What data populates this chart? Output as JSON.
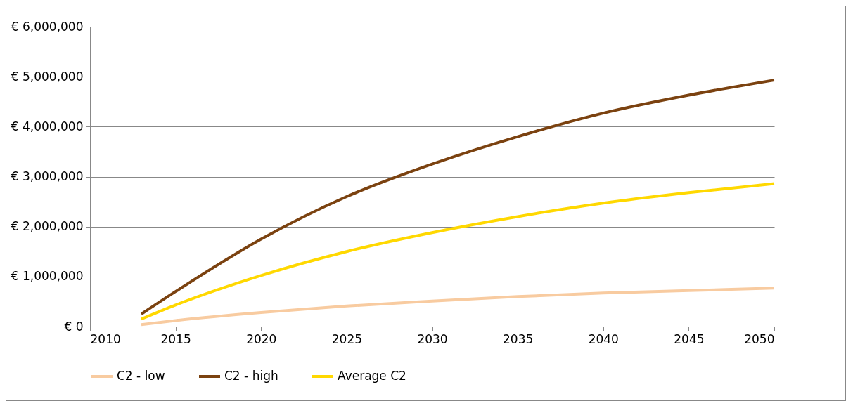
{
  "chart_data": {
    "type": "line",
    "x": [
      2013,
      2015,
      2020,
      2025,
      2030,
      2035,
      2040,
      2045,
      2050
    ],
    "series": [
      {
        "name": "C2 - low",
        "color": "#f8cba0",
        "values": [
          40000,
          120000,
          280000,
          410000,
          510000,
          600000,
          670000,
          720000,
          770000
        ]
      },
      {
        "name": "C2 - high",
        "color": "#7b4210",
        "values": [
          250000,
          700000,
          1750000,
          2600000,
          3250000,
          3800000,
          4270000,
          4630000,
          4930000
        ]
      },
      {
        "name": "Average C2",
        "color": "#ffd800",
        "values": [
          150000,
          430000,
          1020000,
          1500000,
          1880000,
          2200000,
          2470000,
          2680000,
          2860000
        ]
      }
    ],
    "xlim": [
      2010,
      2050
    ],
    "xticks": [
      2010,
      2015,
      2020,
      2025,
      2030,
      2035,
      2040,
      2045,
      2050
    ],
    "ylim": [
      0,
      6000000
    ],
    "yticks": [
      {
        "value": 0,
        "label": "€ 0"
      },
      {
        "value": 1000000,
        "label": "€ 1,000,000"
      },
      {
        "value": 2000000,
        "label": "€ 2,000,000"
      },
      {
        "value": 3000000,
        "label": "€ 3,000,000"
      },
      {
        "value": 4000000,
        "label": "€ 4,000,000"
      },
      {
        "value": 5000000,
        "label": "€ 5,000,000"
      },
      {
        "value": 6000000,
        "label": "€ 6,000,000"
      }
    ],
    "grid": "y",
    "legend": "bottom",
    "marker": "none",
    "line_style": "solid"
  }
}
